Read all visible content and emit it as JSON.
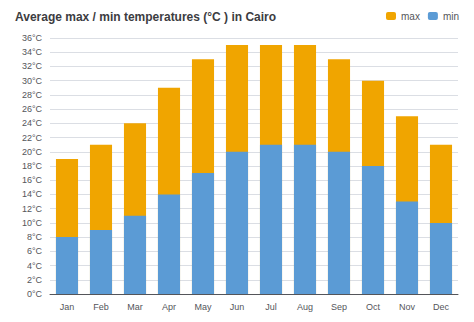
{
  "chart_data": {
    "type": "bar",
    "title": "Average max / min temperatures (°C ) in Cairo",
    "categories": [
      "Jan",
      "Feb",
      "Mar",
      "Apr",
      "May",
      "Jun",
      "Jul",
      "Aug",
      "Sep",
      "Oct",
      "Nov",
      "Dec"
    ],
    "series": [
      {
        "name": "max",
        "color": "#f0a500",
        "values": [
          19,
          21,
          24,
          29,
          33,
          35,
          35,
          35,
          33,
          30,
          25,
          21
        ]
      },
      {
        "name": "min",
        "color": "#5b9bd5",
        "values": [
          8,
          9,
          11,
          14,
          17,
          20,
          21,
          21,
          20,
          18,
          13,
          10
        ]
      }
    ],
    "ylim": [
      0,
      36
    ],
    "yticks": [
      {
        "value": 0,
        "label": "0°C"
      },
      {
        "value": 2,
        "label": "2°C"
      },
      {
        "value": 4,
        "label": "4°C"
      },
      {
        "value": 6,
        "label": "6°C"
      },
      {
        "value": 8,
        "label": "8°C"
      },
      {
        "value": 10,
        "label": "10°C"
      },
      {
        "value": 12,
        "label": "12°C"
      },
      {
        "value": 14,
        "label": "14°C"
      },
      {
        "value": 16,
        "label": "16°C"
      },
      {
        "value": 18,
        "label": "18°C"
      },
      {
        "value": 20,
        "label": "20°C"
      },
      {
        "value": 22,
        "label": "22°C"
      },
      {
        "value": 24,
        "label": "24°C"
      },
      {
        "value": 26,
        "label": "26°C"
      },
      {
        "value": 28,
        "label": "28°C"
      },
      {
        "value": 30,
        "label": "30°C"
      },
      {
        "value": 32,
        "label": "32°C"
      },
      {
        "value": 34,
        "label": "34°C"
      },
      {
        "value": 36,
        "label": "36°C"
      }
    ],
    "grid": true,
    "legend": "upper right"
  }
}
